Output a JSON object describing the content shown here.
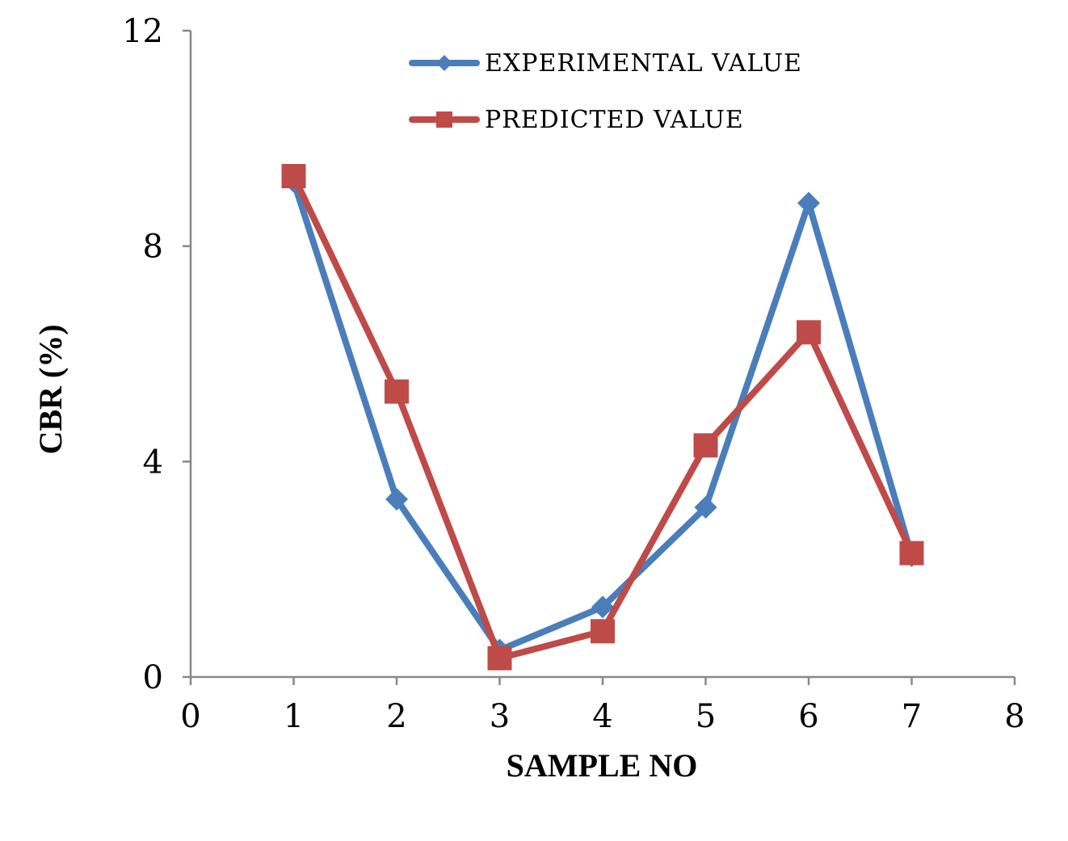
{
  "chart_data": {
    "type": "line",
    "title": "",
    "xlabel": "SAMPLE NO",
    "ylabel": "CBR (%)",
    "xlim": [
      0,
      8
    ],
    "ylim": [
      0,
      12
    ],
    "x_ticks": [
      0,
      1,
      2,
      3,
      4,
      5,
      6,
      7,
      8
    ],
    "y_ticks": [
      0,
      4,
      8,
      12
    ],
    "grid": false,
    "legend_position": "top-center",
    "series": [
      {
        "name": "EXPERIMENTAL VALUE",
        "color": "#4A7EBB",
        "marker": "diamond",
        "x": [
          1,
          2,
          3,
          4,
          5,
          6,
          7
        ],
        "values": [
          9.2,
          3.3,
          0.5,
          1.3,
          3.15,
          8.8,
          2.25
        ]
      },
      {
        "name": "PREDICTED VALUE",
        "color": "#BE4B48",
        "marker": "square",
        "x": [
          1,
          2,
          3,
          4,
          5,
          6,
          7
        ],
        "values": [
          9.3,
          5.3,
          0.35,
          0.85,
          4.3,
          6.4,
          2.3
        ]
      }
    ]
  }
}
